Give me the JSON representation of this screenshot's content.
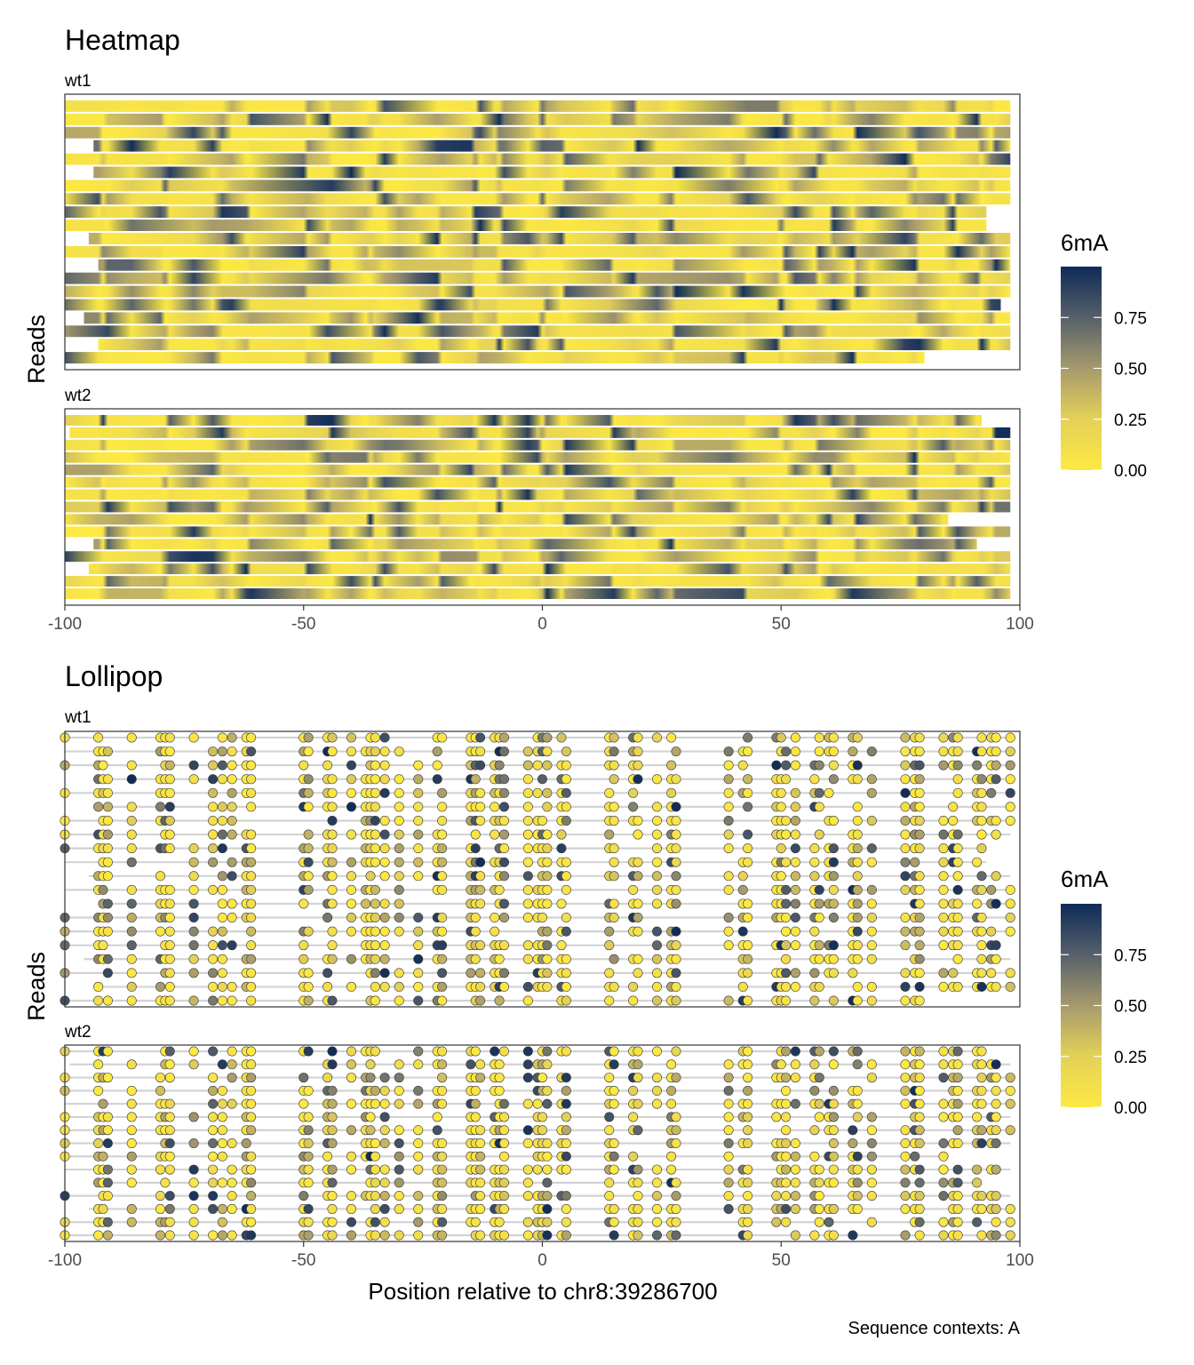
{
  "caption": "Sequence contexts: A",
  "colors": {
    "scale_low": "#fde942",
    "scale_mid": "#a69a6c",
    "scale_high": "#0f2b57",
    "panel_border": "#333333",
    "lollipop_line": "#d3d3d3",
    "background": "#ffffff"
  },
  "chart_data": [
    {
      "type": "heatmap",
      "title": "Heatmap",
      "ylabel": "Reads",
      "xlim": [
        -100,
        100
      ],
      "x_ticks": [
        -100,
        -50,
        0,
        50,
        100
      ],
      "x_tick_labels": [
        "-100",
        "-50",
        "0",
        "50",
        "100"
      ],
      "legend": {
        "title": "6mA",
        "ticks": [
          0.75,
          0.5,
          0.25,
          0.0
        ],
        "tick_labels": [
          "0.75",
          "0.50",
          "0.25",
          "0.00"
        ],
        "range": [
          0,
          1
        ],
        "placement": "right"
      },
      "panels": [
        {
          "label": "wt1",
          "reads": 20,
          "seed": 11
        },
        {
          "label": "wt2",
          "reads": 15,
          "seed": 29
        }
      ]
    },
    {
      "type": "scatter",
      "title": "Lollipop",
      "ylabel": "Reads",
      "xlabel": "Position relative to chr8:39286700",
      "xlim": [
        -100,
        100
      ],
      "x_ticks": [
        -100,
        -50,
        0,
        50,
        100
      ],
      "x_tick_labels": [
        "-100",
        "-50",
        "0",
        "50",
        "100"
      ],
      "legend": {
        "title": "6mA",
        "ticks": [
          0.75,
          0.5,
          0.25,
          0.0
        ],
        "tick_labels": [
          "0.75",
          "0.50",
          "0.25",
          "0.00"
        ],
        "range": [
          0,
          1
        ],
        "placement": "right"
      },
      "sites": [
        -100,
        -93,
        -92,
        -91,
        -86,
        -80,
        -79,
        -78,
        -73,
        -69,
        -67,
        -65,
        -62,
        -61,
        -50,
        -49,
        -45,
        -44,
        -40,
        -37,
        -36,
        -35,
        -33,
        -30,
        -26,
        -22,
        -21,
        -15,
        -14,
        -13,
        -10,
        -9,
        -8,
        -3,
        -1,
        0,
        1,
        4,
        5,
        14,
        15,
        19,
        20,
        24,
        27,
        28,
        39,
        42,
        43,
        49,
        50,
        51,
        53,
        57,
        58,
        60,
        61,
        65,
        66,
        69,
        76,
        78,
        79,
        84,
        86,
        87,
        91,
        92,
        94,
        95,
        98
      ],
      "panels": [
        {
          "label": "wt1",
          "reads": 20,
          "seed": 11
        },
        {
          "label": "wt2",
          "reads": 15,
          "seed": 29
        }
      ]
    }
  ]
}
